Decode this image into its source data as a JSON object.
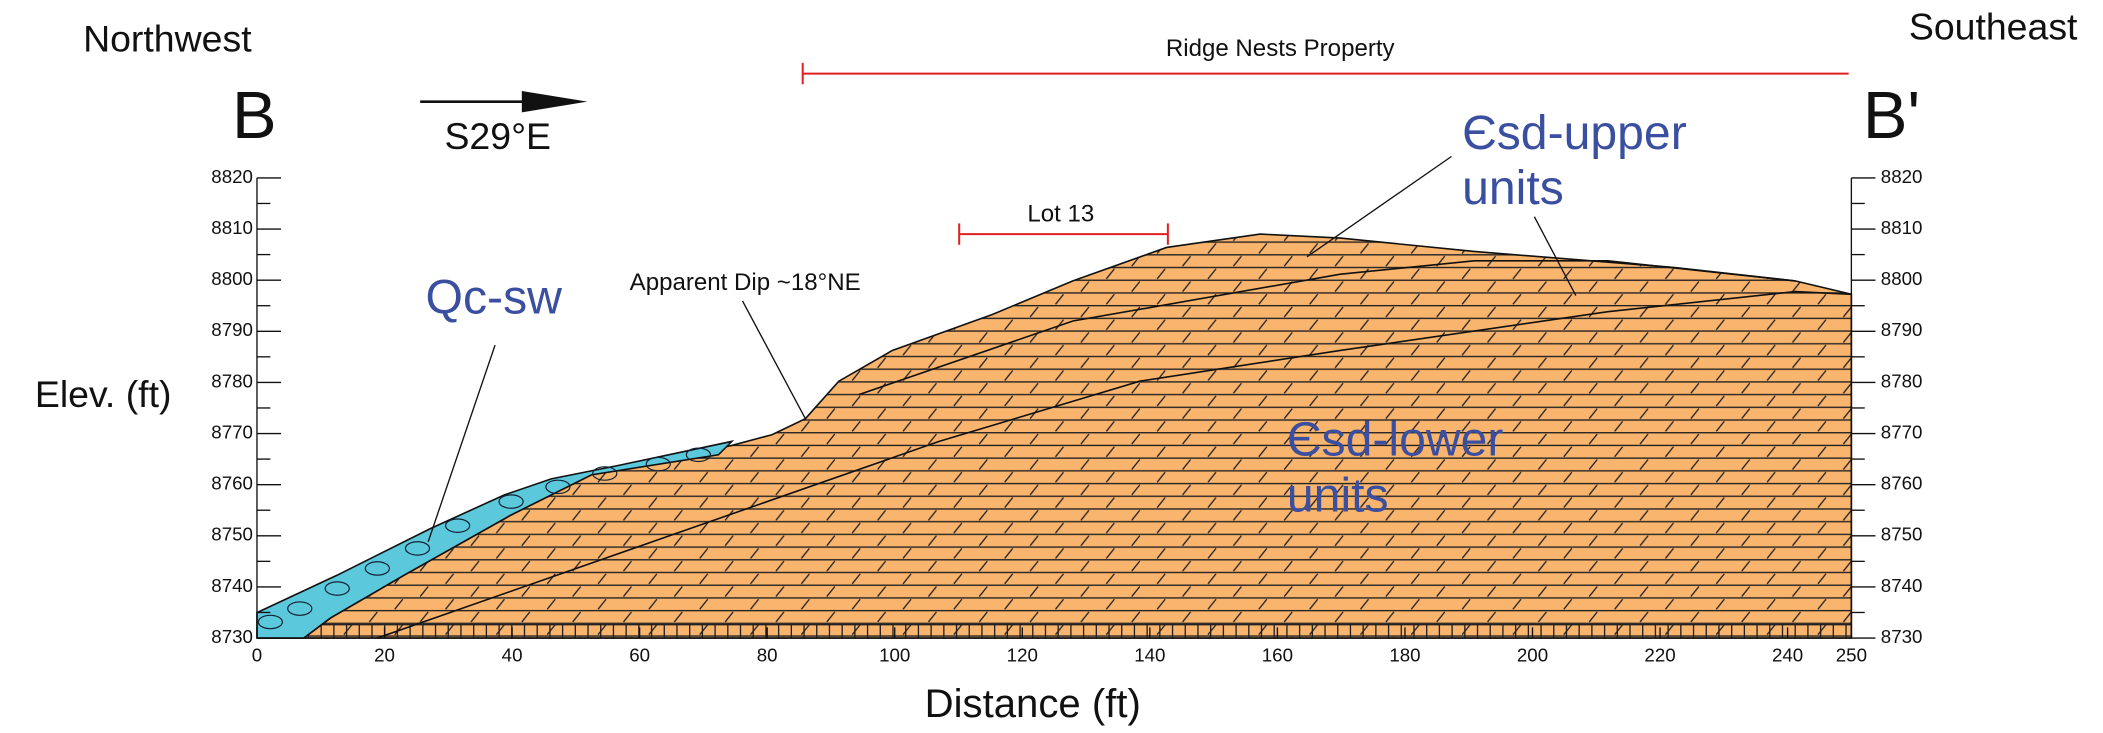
{
  "labels": {
    "left_direction": "Northwest",
    "right_direction": "Southeast",
    "left_section": "B",
    "right_section": "B'",
    "bearing": "S29°E",
    "property": "Ridge Nests Property",
    "lot": "Lot 13",
    "dip": "Apparent Dip ~18°NE",
    "unit_qc": "Qc-sw",
    "unit_upper": [
      "Єsd-upper",
      "units"
    ],
    "unit_lower": [
      "Єsd-lower",
      "units"
    ]
  },
  "axes": {
    "x_label": "Distance (ft)",
    "y_label": "Elev. (ft)",
    "xlim": [
      0,
      250
    ],
    "ylim": [
      8730,
      8820
    ],
    "xticks": [
      0,
      20,
      40,
      60,
      80,
      100,
      120,
      140,
      160,
      180,
      200,
      220,
      240,
      250
    ],
    "yticks": [
      8730,
      8740,
      8750,
      8760,
      8770,
      8780,
      8790,
      8800,
      8810,
      8820
    ]
  }
}
